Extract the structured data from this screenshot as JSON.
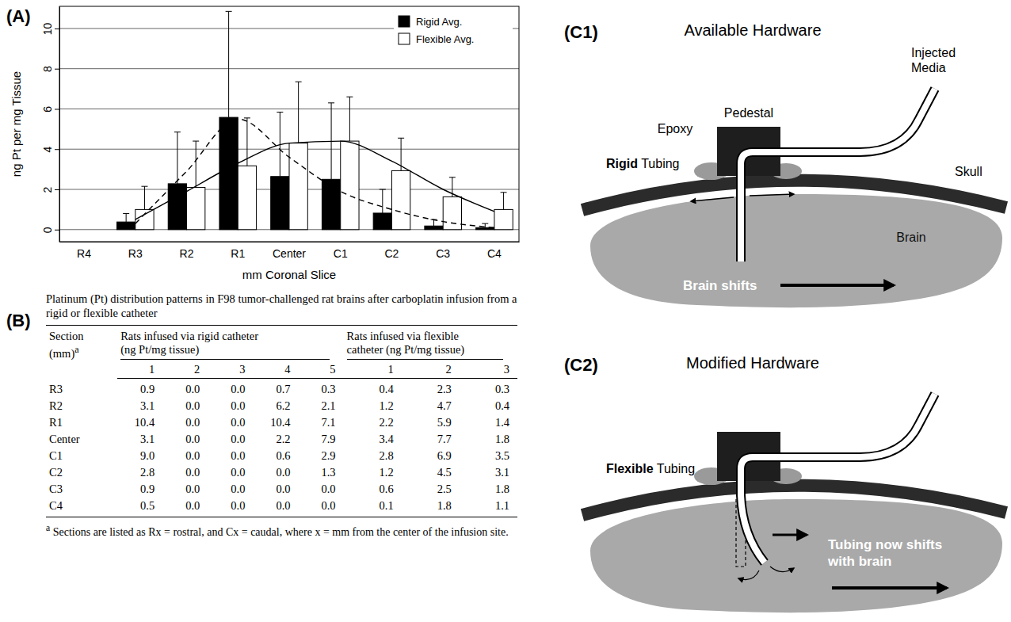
{
  "panel_labels": [
    "(A)",
    "(B)",
    "(C1)",
    "(C2)"
  ],
  "chart_data": {
    "type": "bar",
    "x_label": "mm Coronal Slice",
    "y_label": "ng Pt per mg Tissue",
    "categories": [
      "R4",
      "R3",
      "R2",
      "R1",
      "Center",
      "C1",
      "C2",
      "C3",
      "C4"
    ],
    "series": [
      {
        "name": "Rigid Avg.",
        "color": "#000000",
        "values": [
          null,
          0.38,
          2.28,
          5.58,
          2.64,
          2.5,
          0.82,
          0.18,
          0.1
        ],
        "errors": [
          null,
          0.42,
          2.57,
          5.27,
          3.2,
          3.8,
          1.18,
          0.32,
          0.2
        ]
      },
      {
        "name": "Flexible Avg.",
        "color": "#ffffff",
        "values": [
          null,
          1.0,
          2.1,
          3.17,
          4.3,
          4.4,
          2.93,
          1.63,
          1.0
        ],
        "errors": [
          null,
          1.15,
          2.3,
          2.38,
          3.05,
          2.2,
          1.62,
          0.97,
          0.85
        ]
      },
      {
        "type": "line",
        "line_style": "dashed",
        "color": "#000000",
        "values": [
          null,
          0.3,
          2.9,
          5.5,
          3.6,
          1.9,
          1.0,
          0.4,
          0.1
        ]
      },
      {
        "type": "line",
        "line_style": "solid",
        "color": "#000000",
        "values": [
          null,
          0.5,
          1.9,
          3.3,
          4.3,
          4.4,
          3.4,
          2.0,
          0.9
        ]
      }
    ],
    "ylim": [
      -0.6,
      11.1
    ],
    "yticks": [
      0,
      2,
      4,
      6,
      8,
      10
    ],
    "grid": true,
    "legend": "upper right"
  },
  "table": {
    "title": "Platinum (Pt) distribution patterns in F98 tumor-challenged rat brains after carboplatin infusion from a rigid or flexible catheter",
    "header": {
      "section": "Section (mm)",
      "section_note": "a",
      "rigid": "Rats infused via rigid catheter (ng Pt/mg tissue)",
      "flexible": "Rats infused via flexible catheter (ng Pt/mg tissue)"
    },
    "rigid_columns": [
      "1",
      "2",
      "3",
      "4",
      "5"
    ],
    "flexible_columns": [
      "1",
      "2",
      "3"
    ],
    "rows": [
      [
        "R3",
        "0.9",
        "0.0",
        "0.0",
        "0.7",
        "0.3",
        "0.4",
        "2.3",
        "0.3"
      ],
      [
        "R2",
        "3.1",
        "0.0",
        "0.0",
        "6.2",
        "2.1",
        "1.2",
        "4.7",
        "0.4"
      ],
      [
        "R1",
        "10.4",
        "0.0",
        "0.0",
        "10.4",
        "7.1",
        "2.2",
        "5.9",
        "1.4"
      ],
      [
        "Center",
        "3.1",
        "0.0",
        "0.0",
        "2.2",
        "7.9",
        "3.4",
        "7.7",
        "1.8"
      ],
      [
        "C1",
        "9.0",
        "0.0",
        "0.0",
        "0.6",
        "2.9",
        "2.8",
        "6.9",
        "3.5"
      ],
      [
        "C2",
        "2.8",
        "0.0",
        "0.0",
        "0.0",
        "1.3",
        "1.2",
        "4.5",
        "3.1"
      ],
      [
        "C3",
        "0.9",
        "0.0",
        "0.0",
        "0.0",
        "0.0",
        "0.6",
        "2.5",
        "1.8"
      ],
      [
        "C4",
        "0.5",
        "0.0",
        "0.0",
        "0.0",
        "0.0",
        "0.1",
        "1.8",
        "1.1"
      ]
    ],
    "footnote_mark": "a",
    "footnote": "Sections are listed as Rx = rostral, and Cx = caudal, where x = mm from the center of the infusion site."
  },
  "diagrams": [
    {
      "title": "Available Hardware",
      "tubing": {
        "bold": "Rigid",
        "text": "Tubing"
      },
      "labels": {
        "pedestal": "Pedestal",
        "epoxy": "Epoxy",
        "media": "Injected Media",
        "skull": "Skull",
        "brain": "Brain",
        "shift": "Brain shifts"
      }
    },
    {
      "title": "Modified Hardware",
      "tubing": {
        "bold": "Flexible",
        "text": "Tubing"
      },
      "labels": {
        "shift": "Tubing now shifts with brain"
      }
    }
  ]
}
